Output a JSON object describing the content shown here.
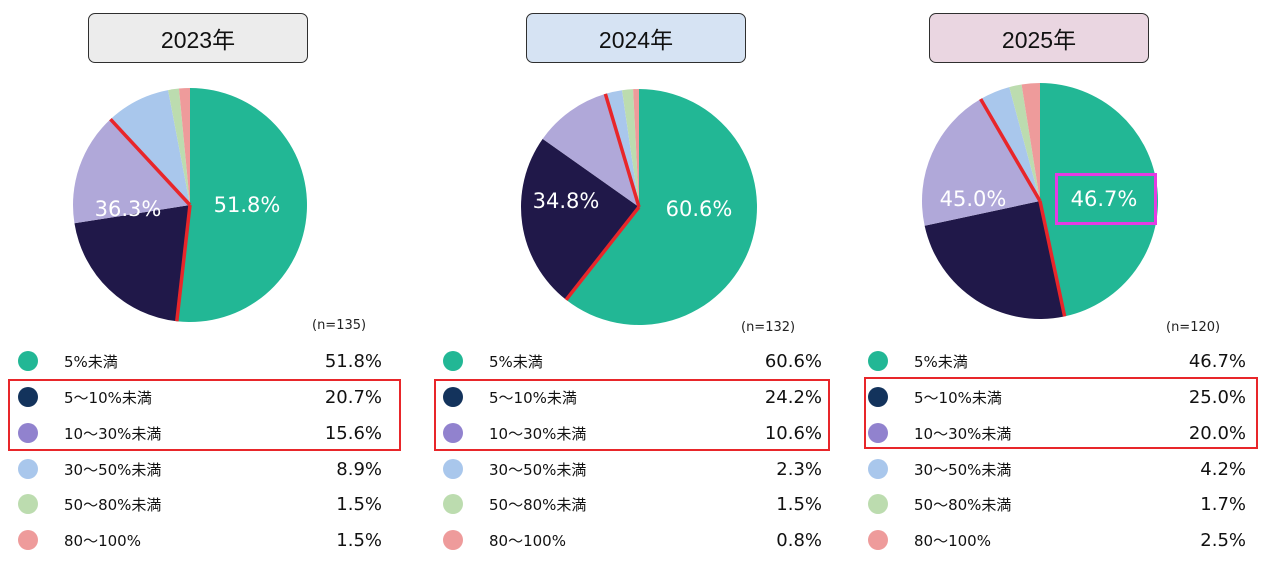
{
  "colors": {
    "seg1": "#22b795",
    "seg2": "#201849",
    "seg3": "#b0a8d9",
    "seg4": "#a9c7ec",
    "seg5": "#bcdcaf",
    "seg6": "#ee9b9b",
    "dot2": "#13335c",
    "dot3": "#9182ce",
    "highlight_red": "#e8262a",
    "highlight_magenta": "#e43be3"
  },
  "panels": [
    {
      "year_label": "2023年",
      "header_bg": "#ececec",
      "sample_size": "(n=135)",
      "pie_labels": [
        "51.8%",
        "36.3%"
      ],
      "legend": [
        {
          "label": "5%未満",
          "value": "51.8%"
        },
        {
          "label": "5〜10%未満",
          "value": "20.7%"
        },
        {
          "label": "10〜30%未満",
          "value": "15.6%"
        },
        {
          "label": "30〜50%未満",
          "value": "8.9%"
        },
        {
          "label": "50〜80%未満",
          "value": "1.5%"
        },
        {
          "label": "80〜100%",
          "value": "1.5%"
        }
      ]
    },
    {
      "year_label": "2024年",
      "header_bg": "#d6e3f3",
      "sample_size": "(n=132)",
      "pie_labels": [
        "60.6%",
        "34.8%"
      ],
      "legend": [
        {
          "label": "5%未満",
          "value": "60.6%"
        },
        {
          "label": "5〜10%未満",
          "value": "24.2%"
        },
        {
          "label": "10〜30%未満",
          "value": "10.6%"
        },
        {
          "label": "30〜50%未満",
          "value": "2.3%"
        },
        {
          "label": "50〜80%未満",
          "value": "1.5%"
        },
        {
          "label": "80〜100%",
          "value": "0.8%"
        }
      ]
    },
    {
      "year_label": "2025年",
      "header_bg": "#ead6e1",
      "sample_size": "(n=120)",
      "pie_labels": [
        "46.7%",
        "45.0%"
      ],
      "legend": [
        {
          "label": "5%未満",
          "value": "46.7%"
        },
        {
          "label": "5〜10%未満",
          "value": "25.0%"
        },
        {
          "label": "10〜30%未満",
          "value": "20.0%"
        },
        {
          "label": "30〜50%未満",
          "value": "4.2%"
        },
        {
          "label": "50〜80%未満",
          "value": "1.7%"
        },
        {
          "label": "80〜100%",
          "value": "2.5%"
        }
      ]
    }
  ],
  "chart_data": [
    {
      "type": "pie",
      "title": "2023年",
      "categories": [
        "5%未満",
        "5〜10%未満",
        "10〜30%未満",
        "30〜50%未満",
        "50〜80%未満",
        "80〜100%"
      ],
      "values": [
        51.8,
        20.7,
        15.6,
        8.9,
        1.5,
        1.5
      ],
      "n": 135,
      "slice_labels": {
        "5%未満": "51.8%",
        "5〜10%未満 + 10〜30%未満": "36.3%"
      },
      "highlighted_categories": [
        "5〜10%未満",
        "10〜30%未満"
      ]
    },
    {
      "type": "pie",
      "title": "2024年",
      "categories": [
        "5%未満",
        "5〜10%未満",
        "10〜30%未満",
        "30〜50%未満",
        "50〜80%未満",
        "80〜100%"
      ],
      "values": [
        60.6,
        24.2,
        10.6,
        2.3,
        1.5,
        0.8
      ],
      "n": 132,
      "slice_labels": {
        "5%未満": "60.6%",
        "5〜10%未満 + 10〜30%未満": "34.8%"
      },
      "highlighted_categories": [
        "5〜10%未満",
        "10〜30%未満"
      ]
    },
    {
      "type": "pie",
      "title": "2025年",
      "categories": [
        "5%未満",
        "5〜10%未満",
        "10〜30%未満",
        "30〜50%未満",
        "50〜80%未満",
        "80〜100%"
      ],
      "values": [
        46.7,
        25.0,
        20.0,
        4.2,
        1.7,
        2.5
      ],
      "n": 120,
      "slice_labels": {
        "5%未満": "46.7%",
        "5〜10%未満 + 10〜30%未満": "45.0%"
      },
      "highlighted_categories": [
        "5〜10%未満",
        "10〜30%未満"
      ],
      "emphasized_label": "46.7%"
    }
  ]
}
